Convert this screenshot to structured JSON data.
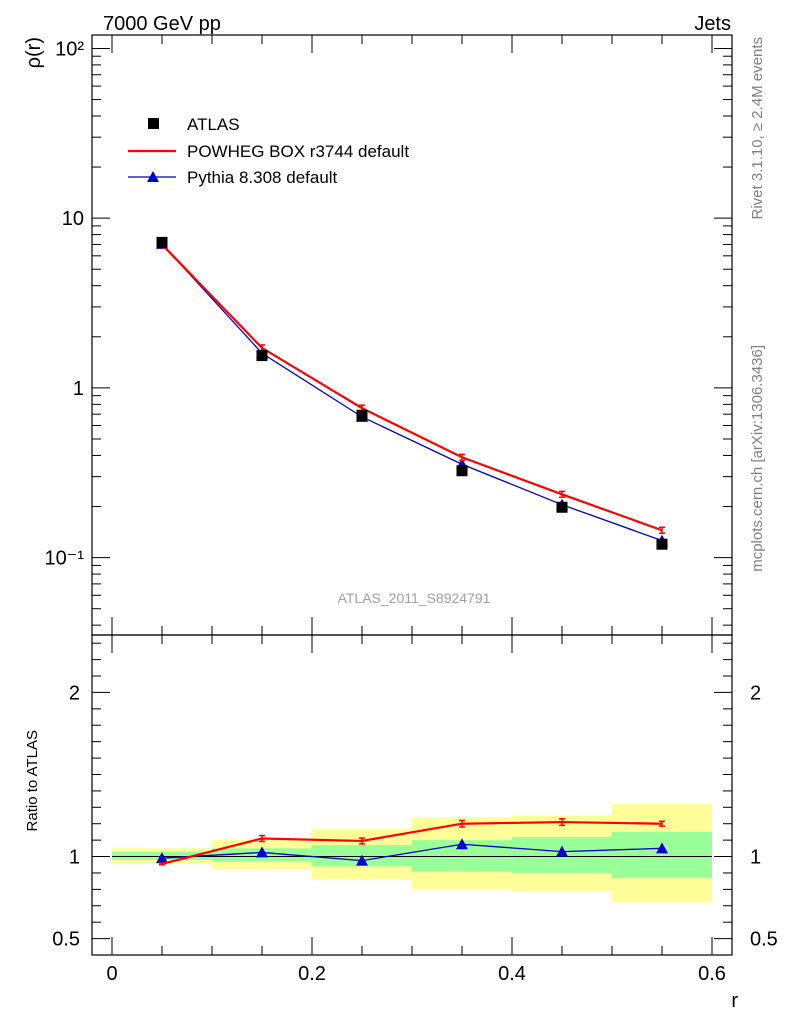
{
  "header": {
    "energy_label": "7000 GeV pp",
    "process_label": "Jets"
  },
  "side_labels": {
    "rivet": "Rivet 3.1.10, ≥ 2.4M events",
    "mcplots": "mcplots.cern.ch [arXiv:1306.3436]"
  },
  "analysis_label": "ATLAS_2011_S8924791",
  "colors": {
    "data": "#000000",
    "powheg": "#ff0000",
    "pythia": "#0000cc",
    "band_inner": "#99ff99",
    "band_outer": "#ffff99"
  },
  "chart_data": [
    {
      "type": "line",
      "panel": "main",
      "ylabel": "ρ(r)",
      "yscale": "log",
      "ylim": [
        0.035,
        120
      ],
      "xlim": [
        -0.02,
        0.62
      ],
      "y_tick_labels": [
        "10⁻¹",
        "1",
        "10",
        "10²"
      ],
      "legend_position": "top-left",
      "series": [
        {
          "name": "ATLAS",
          "marker": "square",
          "x": [
            0.05,
            0.15,
            0.25,
            0.35,
            0.45,
            0.55
          ],
          "y": [
            7.2,
            1.55,
            0.69,
            0.325,
            0.198,
            0.12
          ]
        },
        {
          "name": "POWHEG BOX r3744 default",
          "marker": "none",
          "x": [
            0.05,
            0.15,
            0.25,
            0.35,
            0.45,
            0.55
          ],
          "y": [
            7.0,
            1.72,
            0.76,
            0.39,
            0.236,
            0.145
          ]
        },
        {
          "name": "Pythia 8.308 default",
          "marker": "triangle",
          "x": [
            0.05,
            0.15,
            0.25,
            0.35,
            0.45,
            0.55
          ],
          "y": [
            7.05,
            1.6,
            0.675,
            0.355,
            0.205,
            0.126
          ]
        }
      ]
    },
    {
      "type": "line",
      "panel": "ratio",
      "ylabel": "Ratio to ATLAS",
      "xlabel": "r",
      "ylim": [
        0.4,
        2.35
      ],
      "xlim": [
        -0.02,
        0.62
      ],
      "y_ticks": [
        0.5,
        1,
        2
      ],
      "x_ticks": [
        0,
        0.2,
        0.4,
        0.6
      ],
      "x_tick_labels": [
        "0",
        "0.2",
        "0.4",
        "0.6"
      ],
      "y_tick_labels": [
        "0.5",
        "1",
        "2"
      ],
      "bins": [
        [
          0,
          0.1
        ],
        [
          0.1,
          0.2
        ],
        [
          0.2,
          0.3
        ],
        [
          0.3,
          0.4
        ],
        [
          0.4,
          0.5
        ],
        [
          0.5,
          0.6
        ]
      ],
      "band_inner": {
        "low": [
          0.98,
          0.97,
          0.94,
          0.91,
          0.9,
          0.87
        ],
        "high": [
          1.03,
          1.05,
          1.07,
          1.1,
          1.12,
          1.15
        ]
      },
      "band_outer": {
        "low": [
          0.96,
          0.92,
          0.86,
          0.8,
          0.79,
          0.72
        ],
        "high": [
          1.05,
          1.1,
          1.17,
          1.24,
          1.25,
          1.32
        ]
      },
      "series": [
        {
          "name": "POWHEG BOX r3744 default",
          "x": [
            0.05,
            0.15,
            0.25,
            0.35,
            0.45,
            0.55
          ],
          "y": [
            0.955,
            1.11,
            1.095,
            1.2,
            1.21,
            1.2
          ],
          "err": [
            0.005,
            0.018,
            0.018,
            0.02,
            0.02,
            0.015
          ]
        },
        {
          "name": "Pythia 8.308 default",
          "x": [
            0.05,
            0.15,
            0.25,
            0.35,
            0.45,
            0.55
          ],
          "y": [
            0.99,
            1.025,
            0.975,
            1.075,
            1.03,
            1.05
          ]
        }
      ]
    }
  ]
}
